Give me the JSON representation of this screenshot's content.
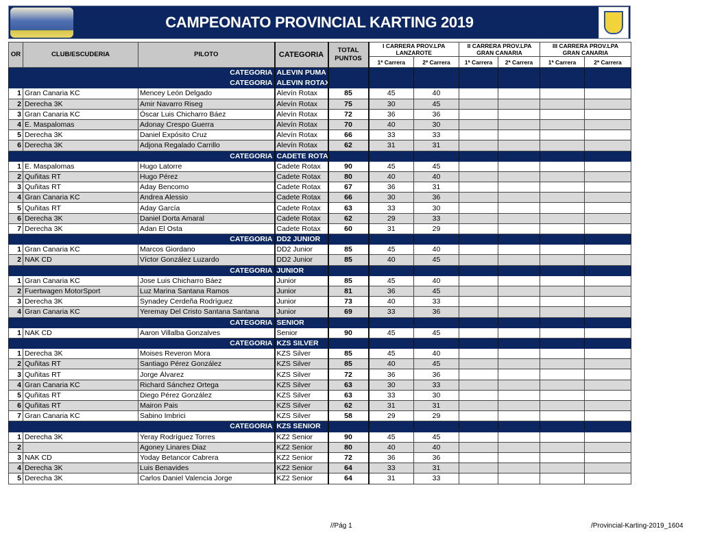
{
  "header": {
    "title": "CAMPEONATO PROVINCIAL KARTING 2019"
  },
  "columns": {
    "or": "OR",
    "club": "CLUB/ESCUDERIA",
    "piloto": "PILOTO",
    "categoria": "CATEGORIA",
    "total": "TOTAL PUNTOS",
    "races": [
      {
        "name": "I CARRERA PROV.LPA",
        "place": "LANZAROTE"
      },
      {
        "name": "II CARRERA PROV.LPA",
        "place": "GRAN CANARIA"
      },
      {
        "name": "III CARRERA PROV.LPA",
        "place": "GRAN CANARIA"
      }
    ],
    "sub1": "1ª Carrera",
    "sub2": "2ª Carrera"
  },
  "category_label": "CATEGORIA",
  "sections": [
    {
      "name": "ALEVIN PUMA",
      "rows": []
    },
    {
      "name": "ALEVIN ROTAX",
      "rows": [
        {
          "or": "1",
          "club": "Gran Canaria KC",
          "piloto": "Mencey León Delgado",
          "cat": "Alevín Rotax",
          "total": "85",
          "r1": "45",
          "r2": "40"
        },
        {
          "or": "2",
          "club": "Derecha 3K",
          "piloto": "Amir Navarro Riseg",
          "cat": "Alevín Rotax",
          "total": "75",
          "r1": "30",
          "r2": "45"
        },
        {
          "or": "3",
          "club": "Gran Canaria KC",
          "piloto": "Óscar Luis Chicharro Báez",
          "cat": "Alevín Rotax",
          "total": "72",
          "r1": "36",
          "r2": "36"
        },
        {
          "or": "4",
          "club": "E. Maspalomas",
          "piloto": "Adonay Crespo Guerra",
          "cat": "Alevín Rotax",
          "total": "70",
          "r1": "40",
          "r2": "30"
        },
        {
          "or": "5",
          "club": "Derecha 3K",
          "piloto": "Daniel Expósito Cruz",
          "cat": "Alevín Rotax",
          "total": "66",
          "r1": "33",
          "r2": "33"
        },
        {
          "or": "6",
          "club": "Derecha 3K",
          "piloto": "Adjona Regalado Carrillo",
          "cat": "Alevín Rotax",
          "total": "62",
          "r1": "31",
          "r2": "31"
        }
      ]
    },
    {
      "name": "CADETE ROTAX",
      "rows": [
        {
          "or": "1",
          "club": "E. Maspalomas",
          "piloto": "Hugo Latorre",
          "cat": "Cadete Rotax",
          "total": "90",
          "r1": "45",
          "r2": "45"
        },
        {
          "or": "2",
          "club": "Quñitas RT",
          "piloto": "Hugo Pérez",
          "cat": "Cadete Rotax",
          "total": "80",
          "r1": "40",
          "r2": "40"
        },
        {
          "or": "3",
          "club": "Quñitas RT",
          "piloto": "Aday Bencomo",
          "cat": "Cadete Rotax",
          "total": "67",
          "r1": "36",
          "r2": "31"
        },
        {
          "or": "4",
          "club": "Gran Canaria KC",
          "piloto": "Andrea Alessio",
          "cat": "Cadete Rotax",
          "total": "66",
          "r1": "30",
          "r2": "36"
        },
        {
          "or": "5",
          "club": "Quñitas RT",
          "piloto": "Aday García",
          "cat": "Cadete Rotax",
          "total": "63",
          "r1": "33",
          "r2": "30"
        },
        {
          "or": "6",
          "club": "Derecha 3K",
          "piloto": "Daniel Dorta Amaral",
          "cat": "Cadete Rotax",
          "total": "62",
          "r1": "29",
          "r2": "33"
        },
        {
          "or": "7",
          "club": "Derecha 3K",
          "piloto": "Adan El Osta",
          "cat": "Cadete Rotax",
          "total": "60",
          "r1": "31",
          "r2": "29"
        }
      ]
    },
    {
      "name": "DD2 JUNIOR",
      "rows": [
        {
          "or": "1",
          "club": "Gran Canaria KC",
          "piloto": "Marcos Giordano",
          "cat": "DD2 Junior",
          "total": "85",
          "r1": "45",
          "r2": "40"
        },
        {
          "or": "2",
          "club": "NAK CD",
          "piloto": "Víctor González Luzardo",
          "cat": "DD2 Junior",
          "total": "85",
          "r1": "40",
          "r2": "45"
        }
      ]
    },
    {
      "name": "JUNIOR",
      "rows": [
        {
          "or": "1",
          "club": "Gran Canaria KC",
          "piloto": "Jose Luis Chicharro Báez",
          "cat": "Junior",
          "total": "85",
          "r1": "45",
          "r2": "40"
        },
        {
          "or": "2",
          "club": "Fuertwagen MotorSport",
          "piloto": "Luz Marina Santana Ramos",
          "cat": "Junior",
          "total": "81",
          "r1": "36",
          "r2": "45"
        },
        {
          "or": "3",
          "club": "Derecha 3K",
          "piloto": "Synadey Cerdeña Rodríguez",
          "cat": "Junior",
          "total": "73",
          "r1": "40",
          "r2": "33"
        },
        {
          "or": "4",
          "club": "Gran Canaria KC",
          "piloto": "Yeremay Del Cristo Santana Santana",
          "cat": "Junior",
          "total": "69",
          "r1": "33",
          "r2": "36"
        }
      ]
    },
    {
      "name": "SENIOR",
      "rows": [
        {
          "or": "1",
          "club": "NAK CD",
          "piloto": "Aaron Villalba Gonzalves",
          "cat": "Senior",
          "total": "90",
          "r1": "45",
          "r2": "45"
        }
      ]
    },
    {
      "name": "KZS SILVER",
      "rows": [
        {
          "or": "1",
          "club": "Derecha 3K",
          "piloto": "Moises Reveron Mora",
          "cat": "KZS Silver",
          "total": "85",
          "r1": "45",
          "r2": "40"
        },
        {
          "or": "2",
          "club": "Quñitas RT",
          "piloto": "Santiago Pérez González",
          "cat": "KZS Silver",
          "total": "85",
          "r1": "40",
          "r2": "45"
        },
        {
          "or": "3",
          "club": "Quñitas RT",
          "piloto": "Jorge Álvarez",
          "cat": "KZS Silver",
          "total": "72",
          "r1": "36",
          "r2": "36"
        },
        {
          "or": "4",
          "club": "Gran Canaria KC",
          "piloto": "Richard Sánchez Ortega",
          "cat": "KZS Silver",
          "total": "63",
          "r1": "30",
          "r2": "33"
        },
        {
          "or": "5",
          "club": "Quñitas RT",
          "piloto": "Diego Pérez González",
          "cat": "KZS Silver",
          "total": "63",
          "r1": "33",
          "r2": "30"
        },
        {
          "or": "6",
          "club": "Quñitas RT",
          "piloto": "Mairon Pais",
          "cat": "KZS Silver",
          "total": "62",
          "r1": "31",
          "r2": "31"
        },
        {
          "or": "7",
          "club": "Gran Canaria KC",
          "piloto": "Sabino Imbrici",
          "cat": "KZS Silver",
          "total": "58",
          "r1": "29",
          "r2": "29"
        }
      ]
    },
    {
      "name": "KZS SENIOR",
      "rows": [
        {
          "or": "1",
          "club": "Derecha 3K",
          "piloto": "Yeray Rodríguez Torres",
          "cat": "KZ2 Senior",
          "total": "90",
          "r1": "45",
          "r2": "45"
        },
        {
          "or": "2",
          "club": "",
          "piloto": "Agoney Linares Diaz",
          "cat": "KZ2 Senior",
          "total": "80",
          "r1": "40",
          "r2": "40"
        },
        {
          "or": "3",
          "club": "NAK CD",
          "piloto": "Yoday Betancor Cabrera",
          "cat": "KZ2 Senior",
          "total": "72",
          "r1": "36",
          "r2": "36"
        },
        {
          "or": "4",
          "club": "Derecha 3K",
          "piloto": "Luis Benavides",
          "cat": "KZ2 Senior",
          "total": "64",
          "r1": "33",
          "r2": "31"
        },
        {
          "or": "5",
          "club": "Derecha 3K",
          "piloto": "Carlos Daniel Valencia Jorge",
          "cat": "KZ2 Senior",
          "total": "64",
          "r1": "31",
          "r2": "33"
        }
      ]
    }
  ],
  "footer": {
    "page": "//Pág 1",
    "file": "/Provincial-Karting-2019_1604"
  }
}
